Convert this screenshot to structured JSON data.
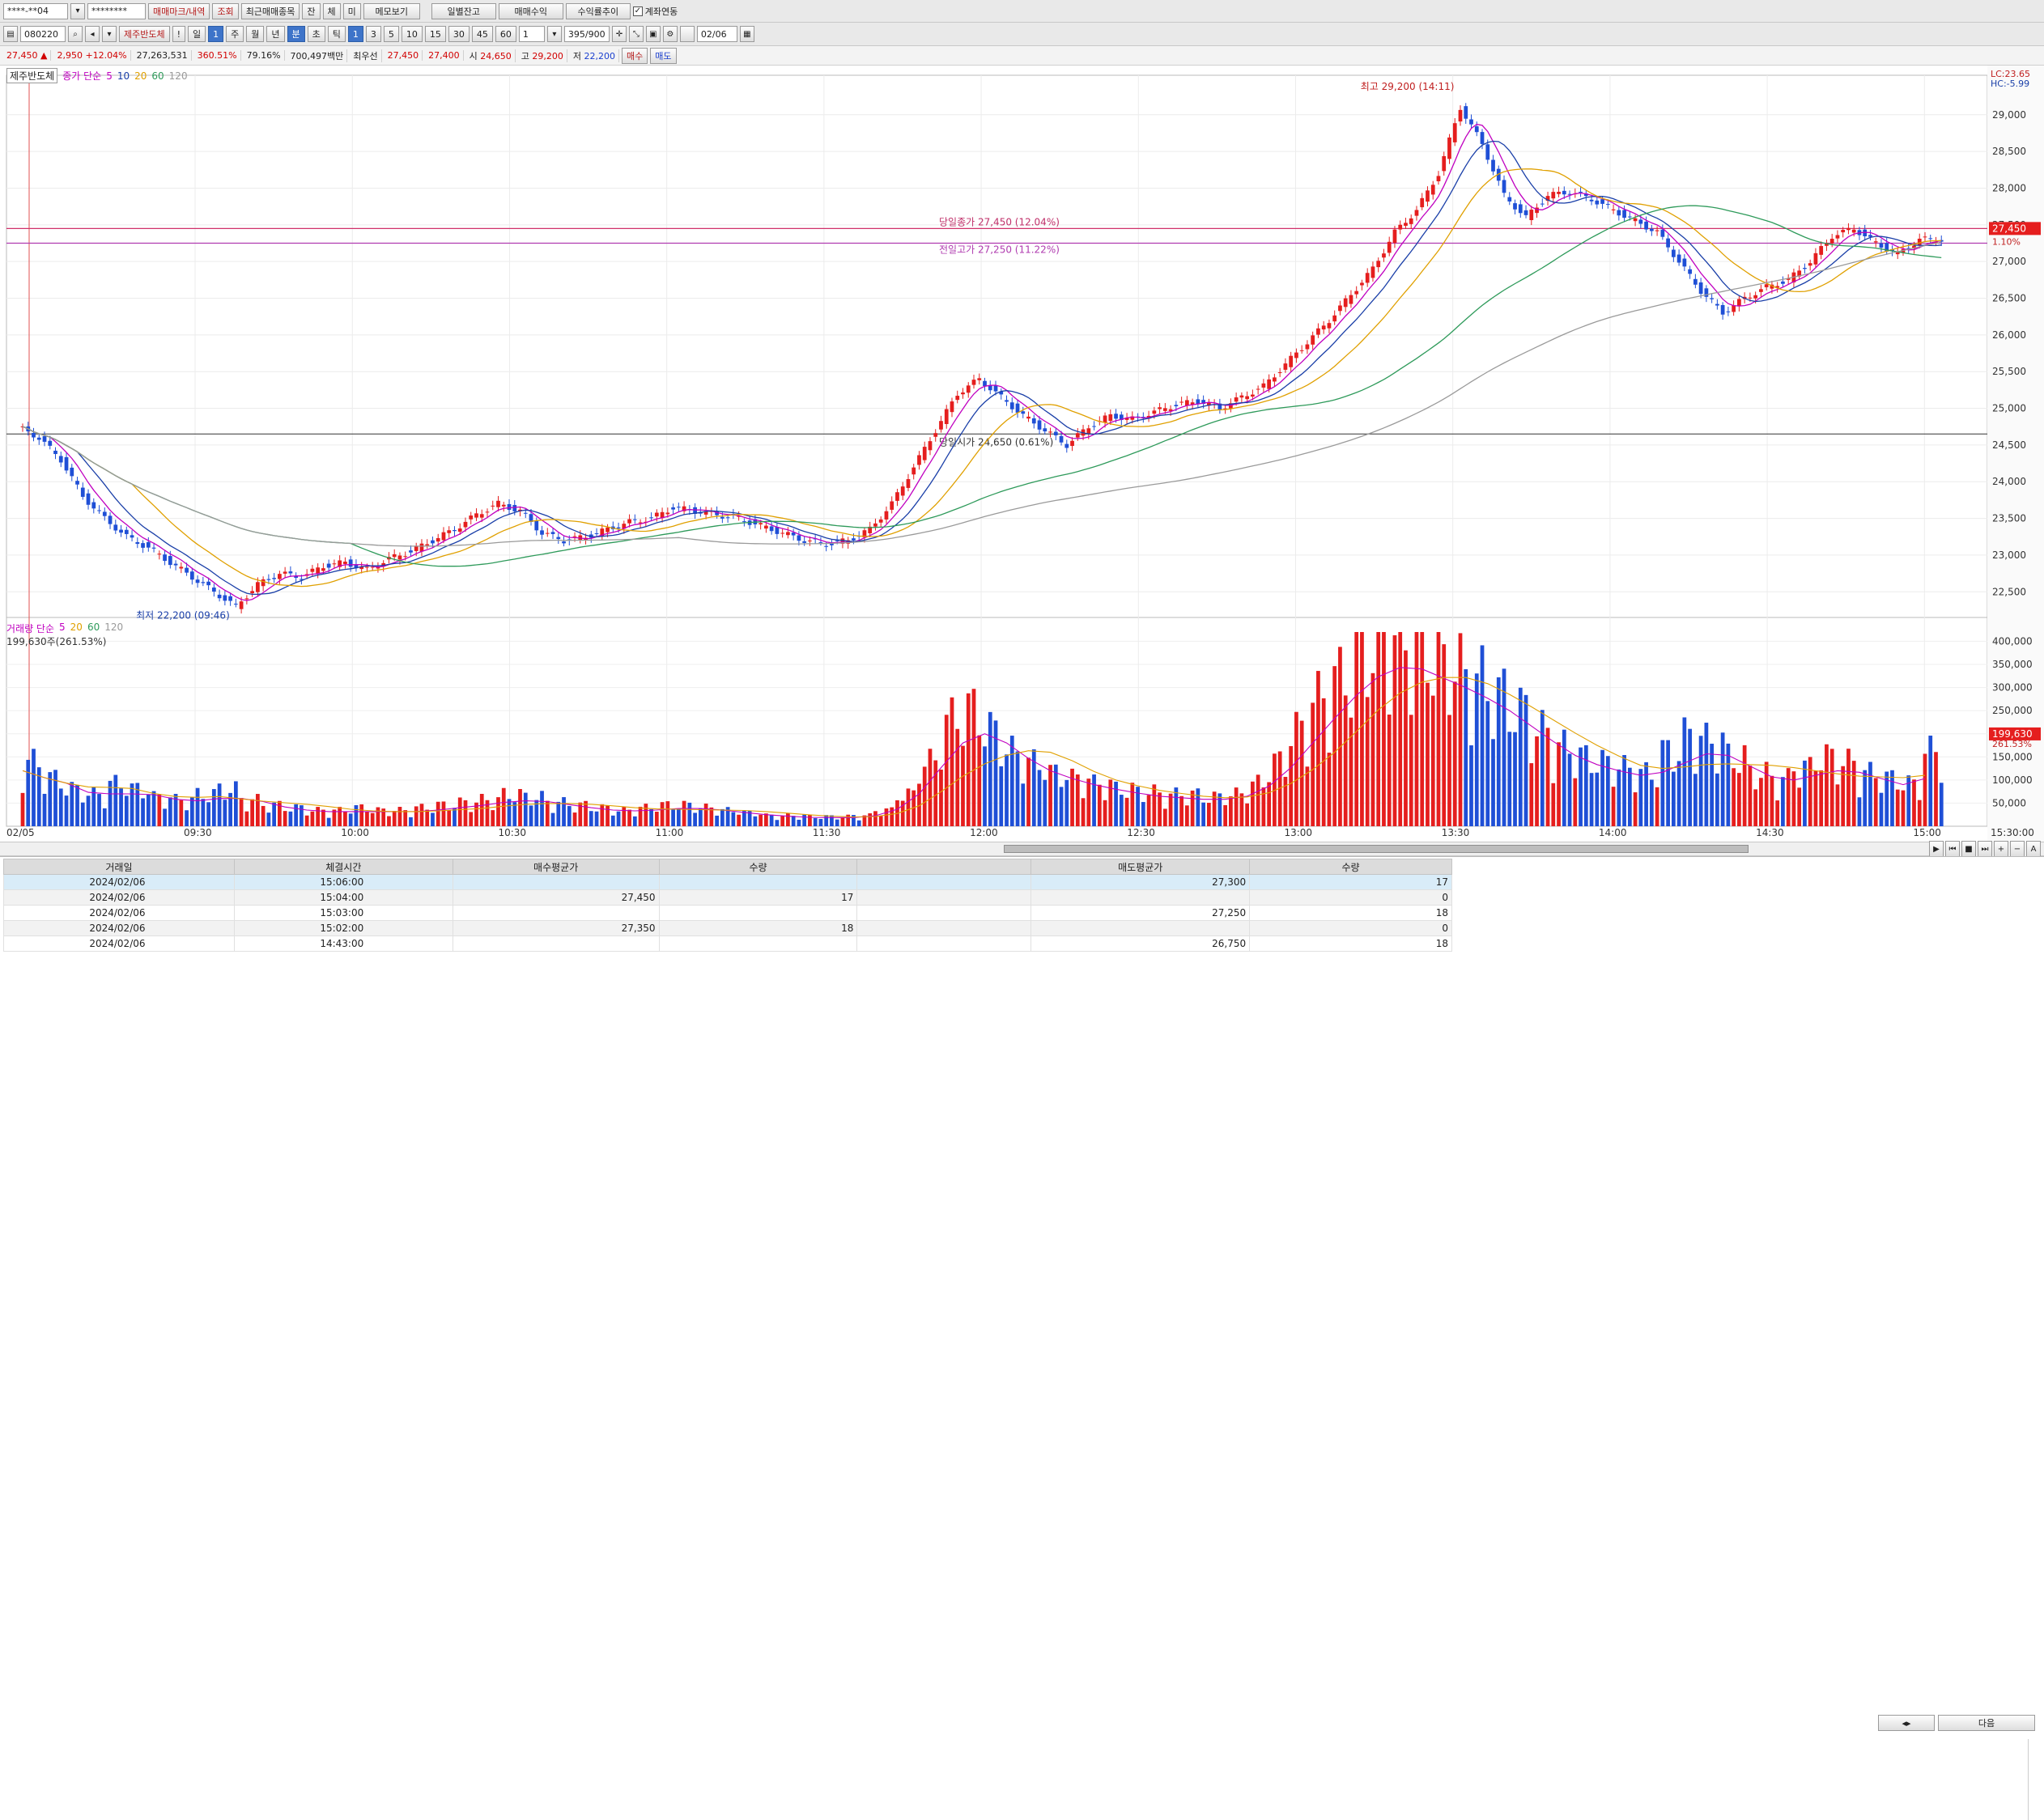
{
  "toolbar1": {
    "account": "****-**04",
    "password": "********",
    "buttons": [
      "매매마크/내역",
      "조회",
      "최근매매종목",
      "잔",
      "체",
      "미",
      "메모보기",
      "일별잔고",
      "매매수익",
      "수익률추이"
    ],
    "link_label": "계좌연동"
  },
  "toolbar2": {
    "code": "080220",
    "stock_name": "제주반도체",
    "periods": [
      "!",
      "일",
      "주",
      "월",
      "년",
      "분",
      "초",
      "틱"
    ],
    "minutes": [
      "1",
      "3",
      "5",
      "10",
      "15",
      "30",
      "45",
      "60"
    ],
    "interval": "1",
    "count": "395/900",
    "date": "02/06"
  },
  "quote": {
    "price": "27,450",
    "arrow": "▲",
    "change": "2,950",
    "change_pct": "+12.04%",
    "volume": "27,263,531",
    "pct1": "360.51%",
    "pct2": "79.16%",
    "amount": "700,497백만",
    "priority": "최우선",
    "ask": "27,450",
    "bid": "27,400",
    "open_label": "시",
    "open": "24,650",
    "high_label": "고",
    "high": "29,200",
    "low_label": "저",
    "low": "22,200",
    "buy": "매수",
    "sell": "매도"
  },
  "legend_price": {
    "name": "제주반도체",
    "ma_label": "종가 단순",
    "periods": [
      "5",
      "10",
      "20",
      "60",
      "120"
    ]
  },
  "legend_volume": {
    "ma_label": "거래량 단순",
    "periods": [
      "5",
      "20",
      "60",
      "120"
    ],
    "current": "199,630주(261.53%)"
  },
  "colors": {
    "up": "#e51e1e",
    "down": "#1f4fd6",
    "ma5": "#c000c0",
    "ma10": "#1a3fa8",
    "ma20": "#e0a000",
    "ma60": "#2e9a5a",
    "ma120": "#9a9a9a"
  },
  "chart_data": {
    "type": "candlestick",
    "interval": "1분",
    "date_label": "02/05",
    "x_ticks": [
      "09:30",
      "10:00",
      "10:30",
      "11:00",
      "11:30",
      "12:00",
      "12:30",
      "13:00",
      "13:30",
      "14:00",
      "14:30",
      "15:00"
    ],
    "x_end_label": "15:30:00",
    "price_ticks": [
      "29,000",
      "28,500",
      "28,000",
      "27,500",
      "27,000",
      "26,500",
      "26,000",
      "25,500",
      "25,000",
      "24,500",
      "24,000",
      "23,500",
      "23,000",
      "22,500"
    ],
    "ylim": [
      22150,
      29450
    ],
    "volume_ticks": [
      "400,000",
      "350,000",
      "300,000",
      "250,000",
      "200,000",
      "150,000",
      "100,000",
      "50,000"
    ],
    "volume_ylim": [
      0,
      420000
    ],
    "right_top": [
      "LC:23.65",
      "HC:-5.99"
    ],
    "right_labels": {
      "price": "27,450",
      "pct": "1.10%",
      "volume": "199,630",
      "volume_pct": "261.53%"
    },
    "annotations": {
      "high": "최고 29,200 (14:11)",
      "low": "최저 22,200 (09:46)",
      "prev_close": "당일종가 27,450 (12.04%)",
      "prev_high": "전일고가 27,250 (11.22%)",
      "open": "당일시가 24,650 (0.61%)"
    },
    "levels": {
      "close": 27450,
      "prev_high": 27250,
      "open": 24650,
      "high": 29200,
      "low": 22200
    },
    "price_path": [
      24750,
      24600,
      24300,
      23800,
      23500,
      23250,
      23100,
      22900,
      22700,
      22500,
      22300,
      22600,
      22750,
      22700,
      22850,
      22900,
      22800,
      22950,
      23050,
      23200,
      23350,
      23550,
      23700,
      23600,
      23300,
      23200,
      23250,
      23350,
      23450,
      23500,
      23650,
      23600,
      23550,
      23500,
      23400,
      23300,
      23200,
      23150,
      23200,
      23350,
      23700,
      24200,
      24700,
      25200,
      25400,
      25150,
      24900,
      24700,
      24500,
      24750,
      24900,
      24850,
      24950,
      25050,
      25100,
      25000,
      25150,
      25300,
      25600,
      25900,
      26200,
      26550,
      26900,
      27400,
      27700,
      28200,
      29100,
      28600,
      27900,
      27600,
      27900,
      27950,
      27850,
      27700,
      27550,
      27400,
      27000,
      26600,
      26300,
      26500,
      26650,
      26750,
      27000,
      27350,
      27450,
      27250,
      27100,
      27300
    ],
    "volume_path": [
      120000,
      90000,
      70000,
      60000,
      80000,
      70000,
      55000,
      50000,
      60000,
      70000,
      50000,
      40000,
      35000,
      30000,
      30000,
      35000,
      30000,
      30000,
      35000,
      40000,
      45000,
      50000,
      60000,
      55000,
      45000,
      40000,
      35000,
      30000,
      35000,
      40000,
      40000,
      35000,
      30000,
      25000,
      20000,
      20000,
      18000,
      18000,
      20000,
      30000,
      60000,
      120000,
      200000,
      220000,
      180000,
      140000,
      120000,
      100000,
      90000,
      80000,
      70000,
      65000,
      60000,
      60000,
      55000,
      60000,
      80000,
      120000,
      180000,
      240000,
      280000,
      330000,
      360000,
      340000,
      320000,
      300000,
      280000,
      250000,
      220000,
      180000,
      150000,
      130000,
      120000,
      110000,
      100000,
      140000,
      170000,
      160000,
      130000,
      100000,
      90000,
      110000,
      130000,
      120000,
      100000,
      90000,
      80000,
      140000
    ]
  },
  "table": {
    "headers": [
      "거래일",
      "체결시간",
      "매수평균가",
      "수량",
      "",
      "매도평균가",
      "수량"
    ],
    "rows": [
      [
        "2024/02/06",
        "15:06:00",
        "",
        "",
        "",
        "27,300",
        "17"
      ],
      [
        "2024/02/06",
        "15:04:00",
        "27,450",
        "17",
        "",
        "",
        "0"
      ],
      [
        "2024/02/06",
        "15:03:00",
        "",
        "",
        "",
        "27,250",
        "18"
      ],
      [
        "2024/02/06",
        "15:02:00",
        "27,350",
        "18",
        "",
        "",
        "0"
      ],
      [
        "2024/02/06",
        "14:43:00",
        "",
        "",
        "",
        "26,750",
        "18"
      ]
    ],
    "next_label": "다음"
  }
}
